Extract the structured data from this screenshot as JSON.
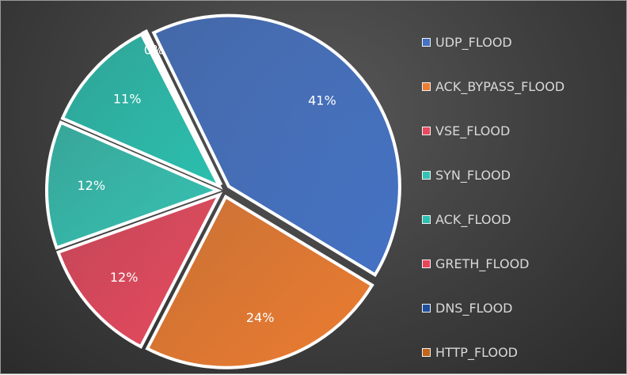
{
  "chart_data": {
    "type": "pie",
    "exploded": true,
    "legend_position": "right",
    "categories": [
      "UDP_FLOOD",
      "ACK_BYPASS_FLOOD",
      "VSE_FLOOD",
      "SYN_FLOOD",
      "ACK_FLOOD",
      "GRETH_FLOOD",
      "DNS_FLOOD",
      "HTTP_FLOOD"
    ],
    "values": [
      41,
      24,
      12,
      12,
      11,
      0.3,
      0,
      0
    ],
    "data_labels": [
      "41%",
      "24%",
      "12%",
      "12%",
      "11%",
      "0%",
      "",
      ""
    ],
    "colors": [
      "#4472c4",
      "#ed7d31",
      "#e84a5f",
      "#36c2b2",
      "#2bbfae",
      "#e8465d",
      "#1f4e9c",
      "#c0651a"
    ]
  }
}
